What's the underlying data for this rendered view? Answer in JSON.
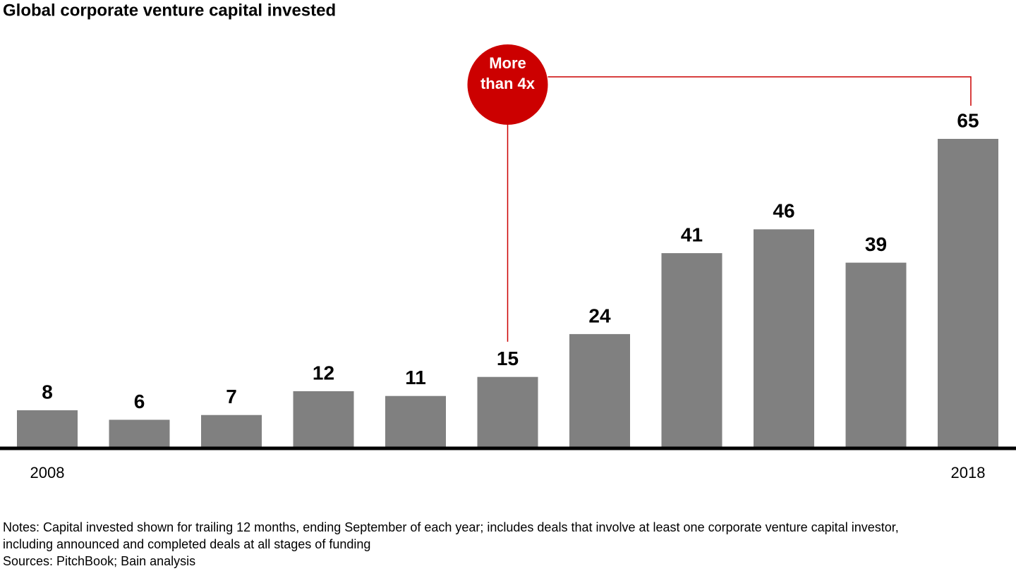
{
  "chart_data": {
    "type": "bar",
    "title": "Global corporate venture capital invested",
    "categories": [
      "2008",
      null,
      null,
      null,
      null,
      null,
      null,
      null,
      null,
      null,
      "2018"
    ],
    "values": [
      8,
      6,
      7,
      12,
      11,
      15,
      24,
      41,
      46,
      39,
      65
    ],
    "color": "#808080",
    "annotation": {
      "lines": [
        "More",
        "than 4x"
      ],
      "color": "#cc0000"
    },
    "notes": [
      "Notes: Capital invested shown for trailing 12 months, ending September of each year; includes deals that involve at least one corporate venture capital investor,",
      "including announced and completed deals at all stages of funding"
    ],
    "sources": "Sources: PitchBook; Bain analysis"
  }
}
